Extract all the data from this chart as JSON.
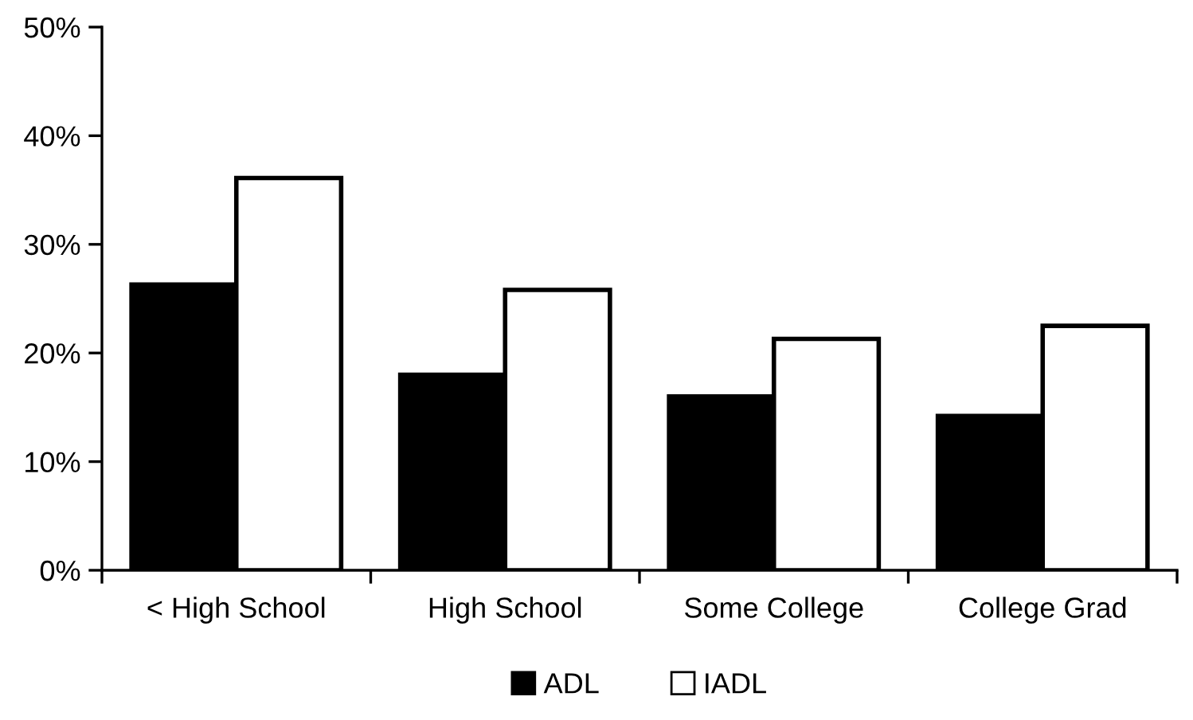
{
  "chart_data": {
    "type": "bar",
    "categories": [
      "< High School",
      "High School",
      "Some College",
      "College Grad"
    ],
    "series": [
      {
        "name": "ADL",
        "color": "#000000",
        "values": [
          26.3,
          18.0,
          16.0,
          14.2
        ]
      },
      {
        "name": "IADL",
        "color": "#ffffff",
        "values": [
          36.1,
          25.8,
          21.3,
          22.5
        ]
      }
    ],
    "ylim": [
      0,
      50
    ],
    "yticks": [
      {
        "value": 0,
        "label": "0%"
      },
      {
        "value": 10,
        "label": "10%"
      },
      {
        "value": 20,
        "label": "20%"
      },
      {
        "value": 30,
        "label": "30%"
      },
      {
        "value": 40,
        "label": "40%"
      },
      {
        "value": 50,
        "label": "50%"
      }
    ],
    "grid": false,
    "legend": "bottom"
  }
}
